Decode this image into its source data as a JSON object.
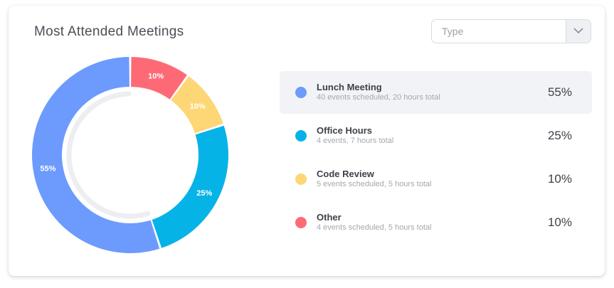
{
  "title": "Most Attended Meetings",
  "filter": {
    "placeholder": "Type",
    "icon": "chevron-down-icon"
  },
  "chart_data": {
    "type": "pie",
    "variant": "donut",
    "title": "Most Attended Meetings",
    "categories": [
      "Lunch Meeting",
      "Office Hours",
      "Code Review",
      "Other"
    ],
    "values": [
      55,
      25,
      10,
      10
    ],
    "labels": [
      "55%",
      "25%",
      "10%",
      "10%"
    ],
    "colors": [
      "#6c9bfd",
      "#06b3e7",
      "#fdd776",
      "#fd6a76"
    ],
    "legend_placement": "right"
  },
  "legend": [
    {
      "name": "Lunch Meeting",
      "sub": "40 events scheduled, 20 hours total",
      "pct": "55%",
      "color": "#6c9bfd"
    },
    {
      "name": "Office Hours",
      "sub": "4 events, 7 hours total",
      "pct": "25%",
      "color": "#06b3e7"
    },
    {
      "name": "Code Review",
      "sub": "5 events scheduled, 5 hours total",
      "pct": "10%",
      "color": "#fdd776"
    },
    {
      "name": "Other",
      "sub": "4 events scheduled, 5 hours total",
      "pct": "10%",
      "color": "#fd6a76"
    }
  ]
}
